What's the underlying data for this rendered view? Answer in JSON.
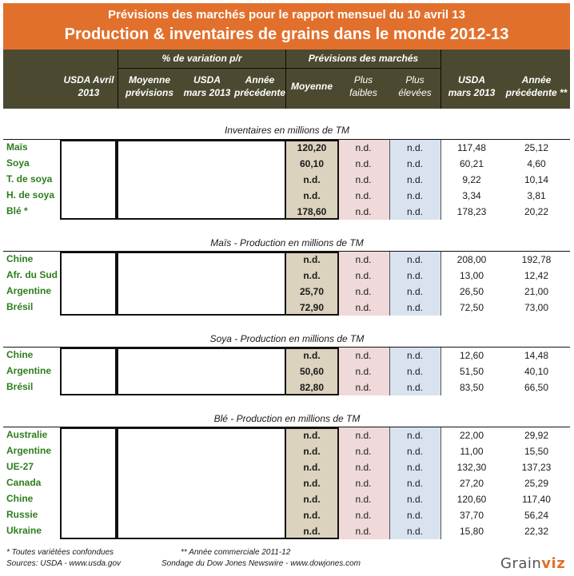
{
  "header": {
    "line1": "Prévisions des marchés pour le rapport mensuel du 10 avril 13",
    "line2": "Production & inventaires de grains dans le monde 2012-13"
  },
  "columns": {
    "group_variation": "% de variation p/r",
    "group_forecast": "Prévisions des marchés",
    "usda_april": [
      "USDA Avril",
      "2013"
    ],
    "avg_forecast": [
      "Moyenne",
      "prévisions"
    ],
    "usda_march_var": [
      "USDA",
      "mars 2013"
    ],
    "prev_year_var": [
      "Année",
      "précédente"
    ],
    "mean": "Moyenne",
    "lowest": [
      "Plus",
      "faibles"
    ],
    "highest": [
      "Plus",
      "élevées"
    ],
    "usda_march": [
      "USDA",
      "mars 2013"
    ],
    "prev_year": [
      "Année",
      "précédente **"
    ]
  },
  "sections": [
    {
      "title": "Inventaires en millions de TM",
      "rows": [
        {
          "label": "Maïs",
          "mean": "120,20",
          "low": "n.d.",
          "high": "n.d.",
          "usda": "117,48",
          "prev": "25,12"
        },
        {
          "label": "Soya",
          "mean": "60,10",
          "low": "n.d.",
          "high": "n.d.",
          "usda": "60,21",
          "prev": "4,60"
        },
        {
          "label": "T. de soya",
          "mean": "n.d.",
          "low": "n.d.",
          "high": "n.d.",
          "usda": "9,22",
          "prev": "10,14"
        },
        {
          "label": "H. de soya",
          "mean": "n.d.",
          "low": "n.d.",
          "high": "n.d.",
          "usda": "3,34",
          "prev": "3,81"
        },
        {
          "label": "Blé *",
          "mean": "178,60",
          "low": "n.d.",
          "high": "n.d.",
          "usda": "178,23",
          "prev": "20,22"
        }
      ]
    },
    {
      "title": "Maïs - Production en millions de TM",
      "rows": [
        {
          "label": "Chine",
          "mean": "n.d.",
          "low": "n.d.",
          "high": "n.d.",
          "usda": "208,00",
          "prev": "192,78"
        },
        {
          "label": "Afr. du Sud",
          "mean": "n.d.",
          "low": "n.d.",
          "high": "n.d.",
          "usda": "13,00",
          "prev": "12,42"
        },
        {
          "label": "Argentine",
          "mean": "25,70",
          "low": "n.d.",
          "high": "n.d.",
          "usda": "26,50",
          "prev": "21,00"
        },
        {
          "label": "Brésil",
          "mean": "72,90",
          "low": "n.d.",
          "high": "n.d.",
          "usda": "72,50",
          "prev": "73,00"
        }
      ]
    },
    {
      "title": "Soya - Production en millions de TM",
      "rows": [
        {
          "label": "Chine",
          "mean": "n.d.",
          "low": "n.d.",
          "high": "n.d.",
          "usda": "12,60",
          "prev": "14,48"
        },
        {
          "label": "Argentine",
          "mean": "50,60",
          "low": "n.d.",
          "high": "n.d.",
          "usda": "51,50",
          "prev": "40,10"
        },
        {
          "label": "Brésil",
          "mean": "82,80",
          "low": "n.d.",
          "high": "n.d.",
          "usda": "83,50",
          "prev": "66,50"
        }
      ]
    },
    {
      "title": "Blé - Production en millions de TM",
      "rows": [
        {
          "label": "Australie",
          "mean": "n.d.",
          "low": "n.d.",
          "high": "n.d.",
          "usda": "22,00",
          "prev": "29,92"
        },
        {
          "label": "Argentine",
          "mean": "n.d.",
          "low": "n.d.",
          "high": "n.d.",
          "usda": "11,00",
          "prev": "15,50"
        },
        {
          "label": "UE-27",
          "mean": "n.d.",
          "low": "n.d.",
          "high": "n.d.",
          "usda": "132,30",
          "prev": "137,23"
        },
        {
          "label": "Canada",
          "mean": "n.d.",
          "low": "n.d.",
          "high": "n.d.",
          "usda": "27,20",
          "prev": "25,29"
        },
        {
          "label": "Chine",
          "mean": "n.d.",
          "low": "n.d.",
          "high": "n.d.",
          "usda": "120,60",
          "prev": "117,40"
        },
        {
          "label": "Russie",
          "mean": "n.d.",
          "low": "n.d.",
          "high": "n.d.",
          "usda": "37,70",
          "prev": "56,24"
        },
        {
          "label": "Ukraine",
          "mean": "n.d.",
          "low": "n.d.",
          "high": "n.d.",
          "usda": "15,80",
          "prev": "22,32"
        }
      ]
    }
  ],
  "footer": {
    "note1": "* Toutes variétées confondues",
    "note2": "** Année commerciale 2011-12",
    "sources": "Sources: USDA - www.usda.gov",
    "survey": "Sondage du Dow Jones Newswire - www.dowjones.com"
  },
  "logo": {
    "part1": "Grain",
    "part2": "viz"
  },
  "colors": {
    "banner": "#e2702d",
    "header": "#4b4a30",
    "label": "#2e7d1d",
    "mean_bg": "#dcd3be",
    "low_bg": "#f0d9da",
    "high_bg": "#d9e3ef"
  }
}
